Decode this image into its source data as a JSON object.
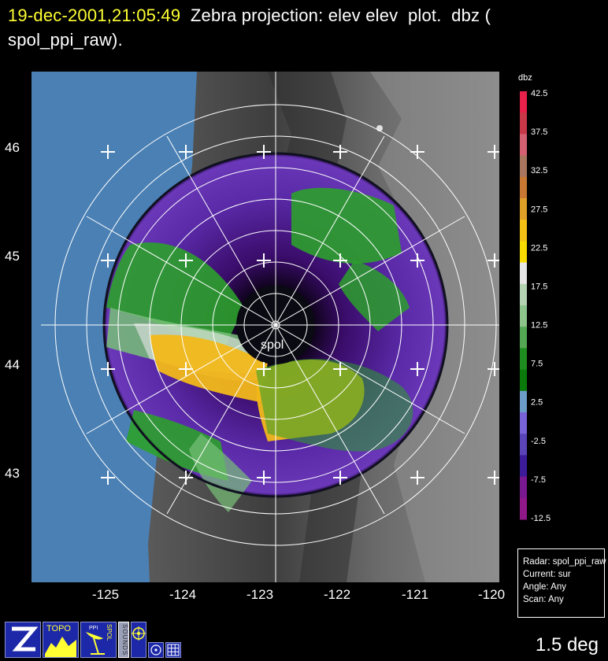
{
  "title": {
    "timestamp": "19-dec-2001,21:05:49",
    "rest": "  Zebra projection: elev elev  plot.  dbz (\nspol_ppi_raw)."
  },
  "map": {
    "site_label": "spol",
    "lat_labels": [
      "46",
      "45",
      "44",
      "43"
    ],
    "lon_labels": [
      "-125",
      "-124",
      "-123",
      "-122",
      "-121",
      "-120"
    ]
  },
  "colorbar": {
    "unit": "dbz",
    "tick_labels": [
      "42.5",
      "37.5",
      "32.5",
      "27.5",
      "22.5",
      "17.5",
      "12.5",
      "7.5",
      "2.5",
      "-2.5",
      "-7.5",
      "-12.5"
    ],
    "colors": [
      "#e8214a",
      "#c83848",
      "#d46072",
      "#a8765e",
      "#c87832",
      "#e0a028",
      "#f4c016",
      "#f6da00",
      "#e6e6e6",
      "#b4d4b4",
      "#8cc48c",
      "#54a854",
      "#1e8c1e",
      "#0a7a0a",
      "#6c9cc8",
      "#7864d8",
      "#5a44b8",
      "#3c1c98",
      "#7a1890",
      "#901888"
    ]
  },
  "info": {
    "radar": "Radar: spol_ppi_raw",
    "current": "Current: sur",
    "angle": "Angle: Any",
    "scan": "Scan: Any"
  },
  "toolbar": {
    "topo_label": "TOPO",
    "ppi_label": "PPI",
    "spol_label": "SPOL",
    "sounds_label": "SOUNDS"
  },
  "angle_display": "1.5 deg"
}
